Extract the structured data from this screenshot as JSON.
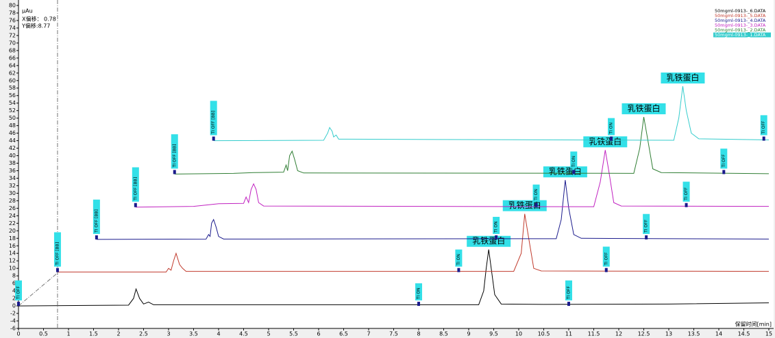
{
  "chart_data": {
    "type": "line",
    "y_unit": "μAu",
    "x_label": "保留时间[min]",
    "offsets": [
      {
        "value": 0.78,
        "label": "X偏移： 0.78"
      },
      {
        "value": 8.77,
        "label": "Y偏移:8.77"
      }
    ],
    "xlim": [
      0,
      15
    ],
    "ylim": [
      -6,
      80
    ],
    "xticks": [
      0,
      0.5,
      1,
      1.5,
      2,
      2.5,
      3,
      3.5,
      4,
      4.5,
      5,
      5.5,
      6,
      6.5,
      7,
      7.5,
      8,
      8.5,
      9,
      9.5,
      10,
      10.5,
      11,
      11.5,
      12,
      12.5,
      13,
      13.5,
      14,
      14.5,
      15
    ],
    "yticks": [
      -6,
      -4,
      -2,
      0,
      2,
      4,
      6,
      8,
      10,
      12,
      14,
      16,
      18,
      20,
      22,
      24,
      26,
      28,
      30,
      32,
      34,
      36,
      38,
      40,
      42,
      44,
      46,
      48,
      50,
      52,
      54,
      56,
      58,
      60,
      62,
      64,
      66,
      68,
      70,
      72,
      74,
      76,
      78,
      80
    ],
    "legend": "top-right",
    "series": [
      {
        "name": "50mgml-0913-_6.DATA",
        "color": "#000000",
        "peak_label": "乳铁蛋白",
        "x": [
          0,
          2.2,
          2.3,
          2.35,
          2.42,
          2.5,
          2.6,
          2.7,
          9.2,
          9.3,
          9.35,
          9.4,
          9.45,
          9.52,
          9.65,
          10.5,
          13,
          15
        ],
        "values": [
          0,
          0.2,
          2,
          4.5,
          2,
          0.5,
          1,
          0.3,
          0.3,
          4,
          10,
          15,
          10,
          3,
          0.5,
          0.4,
          0.5,
          0.8
        ],
        "events": [
          {
            "x": 0,
            "label": "TI OFF"
          },
          {
            "x": 8,
            "label": "TI ON"
          },
          {
            "x": 11,
            "label": "TI OFF"
          }
        ]
      },
      {
        "name": "50mgml-0913-_5.DATA",
        "color": "#c0392b",
        "peak_label": "乳铁蛋白",
        "x": [
          0.78,
          2.95,
          3.0,
          3.05,
          3.1,
          3.15,
          3.22,
          3.28,
          3.35,
          9.9,
          10.05,
          10.12,
          10.2,
          10.3,
          10.45,
          15
        ],
        "values": [
          9,
          9,
          10,
          9.5,
          12,
          14,
          11,
          10,
          9.2,
          9.2,
          14,
          24.5,
          18,
          10,
          9.3,
          9.2
        ],
        "events": [
          {
            "x": 0.78,
            "label": "TI OFF [BB]"
          },
          {
            "x": 8.8,
            "label": "TI ON"
          },
          {
            "x": 11.75,
            "label": "TI OFF"
          }
        ]
      },
      {
        "name": "50mgml-0913-_4.DATA",
        "color": "#1a1a8c",
        "peak_label": "乳铁蛋白",
        "x": [
          1.56,
          3.75,
          3.8,
          3.83,
          3.86,
          3.9,
          3.95,
          4.0,
          4.1,
          10.75,
          10.85,
          10.93,
          11.0,
          11.1,
          11.25,
          15
        ],
        "values": [
          17.7,
          17.8,
          19,
          18.5,
          22,
          23,
          21,
          18.5,
          17.8,
          17.9,
          23,
          33.5,
          26,
          19,
          18,
          17.8
        ],
        "events": [
          {
            "x": 1.56,
            "label": "TI OFF [BB]"
          },
          {
            "x": 9.55,
            "label": "TI ON"
          },
          {
            "x": 12.55,
            "label": "TI OFF"
          }
        ]
      },
      {
        "name": "50mgml-0913-_3.DATA",
        "color": "#c020c0",
        "peak_label": "乳铁蛋白",
        "x": [
          2.34,
          3.5,
          4.0,
          4.5,
          4.55,
          4.6,
          4.65,
          4.7,
          4.75,
          4.8,
          4.9,
          11.5,
          11.63,
          11.73,
          11.8,
          11.9,
          12.05,
          15
        ],
        "values": [
          26.3,
          26.5,
          27.2,
          27.3,
          29,
          27.5,
          31,
          32.5,
          31,
          27.5,
          26.6,
          26.4,
          33,
          41.5,
          36,
          27.5,
          26.6,
          26.5
        ],
        "events": [
          {
            "x": 2.34,
            "label": "TI OFF [BB]"
          },
          {
            "x": 10.35,
            "label": "TI ON"
          },
          {
            "x": 13.35,
            "label": "TI OFF"
          }
        ]
      },
      {
        "name": "50mgml-0913-_2.DATA",
        "color": "#2e7d32",
        "peak_label": "乳铁蛋白",
        "x": [
          3.12,
          4.3,
          4.7,
          5.3,
          5.35,
          5.38,
          5.42,
          5.47,
          5.52,
          5.58,
          5.7,
          12.3,
          12.42,
          12.5,
          12.57,
          12.68,
          12.85,
          15
        ],
        "values": [
          35.1,
          35.3,
          35.5,
          35.6,
          37.5,
          36,
          40,
          41.2,
          39,
          36,
          35.4,
          35.3,
          42,
          50.3,
          45,
          36.5,
          35.5,
          35.2
        ],
        "events": [
          {
            "x": 3.12,
            "label": "TI OFF [BB]"
          },
          {
            "x": 11.1,
            "label": "TI ON"
          },
          {
            "x": 14.1,
            "label": "TI OFF"
          }
        ]
      },
      {
        "name": "50mgml-0913-_1.DATA",
        "color": "#33cccc",
        "peak_label": "乳铁蛋白",
        "x": [
          3.9,
          6.1,
          6.18,
          6.22,
          6.27,
          6.3,
          6.35,
          6.4,
          13.1,
          13.2,
          13.28,
          13.35,
          13.45,
          13.6,
          15
        ],
        "values": [
          44,
          44.1,
          46,
          47.5,
          46.5,
          45,
          45.5,
          44.4,
          44.1,
          50,
          58.5,
          52,
          46,
          44.5,
          44.2
        ],
        "events": [
          {
            "x": 3.9,
            "label": "TI OFF [BB]"
          },
          {
            "x": 11.85,
            "label": "TI ON"
          },
          {
            "x": 14.9,
            "label": "TI OFF"
          }
        ]
      }
    ]
  }
}
